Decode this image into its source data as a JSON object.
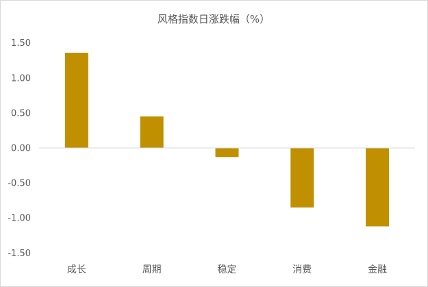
{
  "chart_data": {
    "type": "bar",
    "title": "风格指数日涨跌幅（%）",
    "categories": [
      "成长",
      "周期",
      "稳定",
      "消费",
      "金融"
    ],
    "values": [
      1.36,
      0.45,
      -0.13,
      -0.85,
      -1.12
    ],
    "ylim": [
      -1.5,
      1.5
    ],
    "yticks": [
      1.5,
      1.0,
      0.5,
      0.0,
      -0.5,
      -1.0,
      -1.5
    ],
    "ytick_labels": [
      "1.50",
      "1.00",
      "0.50",
      "0.00",
      "-0.50",
      "-1.00",
      "-1.50"
    ],
    "xlabel": "",
    "ylabel": "",
    "grid": false,
    "legend": "none",
    "bar_color": "#C09000",
    "axis_color": "#D9D9D9",
    "border_color": "#D9D9D9"
  }
}
